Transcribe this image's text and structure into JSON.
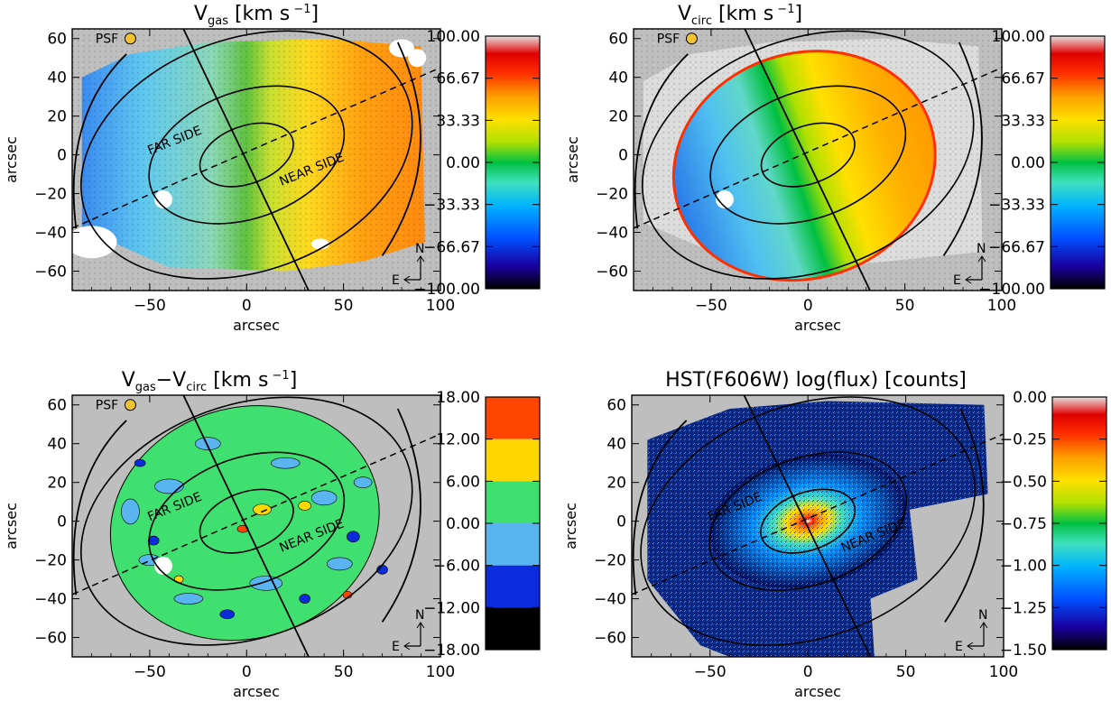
{
  "chart_data": [
    {
      "type": "heatmap",
      "title_main": "V",
      "title_sub": "gas",
      "title_units": "[km s",
      "title_sup": "−1",
      "title_close": "]",
      "xlabel": "arcsec",
      "ylabel": "arcsec",
      "xlim": [
        -90,
        100
      ],
      "ylim": [
        -70,
        65
      ],
      "xticks": [
        "−50",
        "0",
        "50",
        "100"
      ],
      "yticks": [
        "60",
        "40",
        "20",
        "0",
        "−20",
        "−40",
        "−60"
      ],
      "colorbar": {
        "range": [
          -100.0,
          100.0
        ],
        "ticks": [
          "100.00",
          "66.67",
          "33.33",
          "0.00",
          "−33.33",
          "−66.67",
          "−100.00"
        ],
        "scale": "rainbow-continuous"
      },
      "annotations": {
        "psf": "PSF",
        "far": "FAR SIDE",
        "near": "NEAR SIDE",
        "north": "N",
        "east": "E"
      },
      "velocity_field": {
        "amplitude_kms": 65,
        "kinematic_axis": "major axis dashed line"
      }
    },
    {
      "type": "heatmap",
      "title_main": "V",
      "title_sub": "circ",
      "title_units": "[km s",
      "title_sup": "−1",
      "title_close": "]",
      "xlabel": "arcsec",
      "ylabel": "arcsec",
      "xlim": [
        -90,
        100
      ],
      "ylim": [
        -70,
        65
      ],
      "xticks": [
        "−50",
        "0",
        "50",
        "100"
      ],
      "yticks": [
        "60",
        "40",
        "20",
        "0",
        "−20",
        "−40",
        "−60"
      ],
      "colorbar": {
        "range": [
          -100.0,
          100.0
        ],
        "ticks": [
          "100.00",
          "66.67",
          "33.33",
          "0.00",
          "−33.33",
          "−66.67",
          "−100.00"
        ],
        "scale": "rainbow-continuous"
      },
      "annotations": {
        "psf": "PSF",
        "north": "N",
        "east": "E"
      },
      "velocity_field": {
        "amplitude_kms": 55,
        "model": "circular rotation"
      }
    },
    {
      "type": "heatmap",
      "title_main": "V",
      "title_sub": "gas",
      "title_mid": "−V",
      "title_sub2": "circ",
      "title_units": "[km s",
      "title_sup": "−1",
      "title_close": "]",
      "xlabel": "arcsec",
      "ylabel": "arcsec",
      "xlim": [
        -90,
        100
      ],
      "ylim": [
        -70,
        65
      ],
      "xticks": [
        "−50",
        "0",
        "50",
        "100"
      ],
      "yticks": [
        "60",
        "40",
        "20",
        "0",
        "−20",
        "−40",
        "−60"
      ],
      "colorbar": {
        "range": [
          -18.0,
          18.0
        ],
        "ticks": [
          "18.00",
          "12.00",
          "6.00",
          "0.00",
          "−6.00",
          "−12.00",
          "−18.00"
        ],
        "levels": [
          {
            "from": 12,
            "to": 18,
            "color": "#ff4500"
          },
          {
            "from": 6,
            "to": 12,
            "color": "#ffd700"
          },
          {
            "from": 0,
            "to": 6,
            "color": "#40e070"
          },
          {
            "from": -6,
            "to": 0,
            "color": "#5ab4f0"
          },
          {
            "from": -12,
            "to": -6,
            "color": "#0a2cdc"
          },
          {
            "from": -18,
            "to": -12,
            "color": "#000000"
          }
        ]
      },
      "annotations": {
        "psf": "PSF",
        "far": "FAR SIDE",
        "near": "NEAR SIDE",
        "north": "N",
        "east": "E"
      }
    },
    {
      "type": "heatmap",
      "title": "HST(F606W)  log(flux)  [counts]",
      "xlabel": "arcsec",
      "ylabel": "arcsec",
      "xlim": [
        -90,
        100
      ],
      "ylim": [
        -70,
        65
      ],
      "xticks": [
        "−50",
        "0",
        "50",
        "100"
      ],
      "yticks": [
        "60",
        "40",
        "20",
        "0",
        "−20",
        "−40",
        "−60"
      ],
      "colorbar": {
        "range": [
          -1.5,
          0.0
        ],
        "ticks": [
          "0.00",
          "−0.25",
          "−0.50",
          "−0.75",
          "−1.00",
          "−1.25",
          "−1.50"
        ],
        "scale": "rainbow-continuous"
      },
      "annotations": {
        "far": "FAR SIDE",
        "near": "NEAR SIDE",
        "north": "N",
        "east": "E"
      }
    }
  ],
  "colors": {
    "background_gray": "#bebebe",
    "psf_marker": "#f2c230",
    "rainbow": [
      "#000000",
      "#1a00a0",
      "#0050ff",
      "#00b4ff",
      "#40e0c0",
      "#00c040",
      "#b0e000",
      "#ffe000",
      "#ffa000",
      "#ff3000",
      "#e00000",
      "#e8d0d0"
    ]
  }
}
